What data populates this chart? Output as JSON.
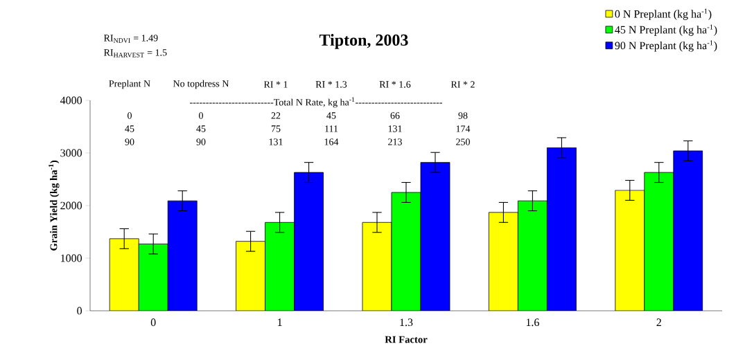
{
  "chart_data": {
    "type": "bar",
    "title": "Tipton, 2003",
    "xlabel": "RI Factor",
    "ylabel": "Grain Yield (kg ha$^{-1}$)",
    "categories": [
      "0",
      "1",
      "1.3",
      "1.6",
      "2"
    ],
    "series": [
      {
        "name": "0 N Preplant (kg ha$^{-1}$)",
        "color": "#ffff00",
        "values": [
          1370,
          1320,
          1680,
          1870,
          2290
        ],
        "errors": [
          190,
          190,
          190,
          190,
          190
        ]
      },
      {
        "name": "45 N Preplant (kg ha$^{-1}$)",
        "color": "#00ff00",
        "values": [
          1270,
          1680,
          2250,
          2090,
          2630
        ],
        "errors": [
          190,
          190,
          190,
          190,
          190
        ]
      },
      {
        "name": "90 N Preplant (kg ha$^{-1}$)",
        "color": "#0000ff",
        "values": [
          2090,
          2630,
          2820,
          3100,
          3040
        ],
        "errors": [
          190,
          190,
          190,
          190,
          190
        ]
      }
    ],
    "ylim": [
      0,
      4000
    ],
    "yticks": [
      0,
      1000,
      2000,
      3000,
      4000
    ],
    "legend": "top right",
    "annotations": [
      "RI$_{NDVI}$ = 1.49",
      "RI$_{HARVEST}$ = 1.5",
      "Preplant N",
      "No topdress N",
      "RI * 1",
      "RI * 1.3",
      "RI * 1.6",
      "RI * 2",
      "--------------------------Total N Rate,  kg ha$^{-1}$---------------------------",
      "0",
      "0",
      "22",
      "45",
      "66",
      "98",
      "45",
      "45",
      "75",
      "111",
      "131",
      "174",
      "90",
      "90",
      "131",
      "164",
      "213",
      "250"
    ]
  }
}
